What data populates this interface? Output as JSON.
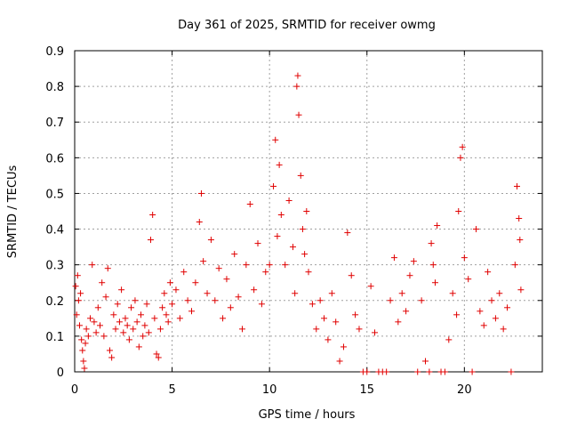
{
  "chart_data": {
    "type": "scatter",
    "title": "Day 361 of 2025, SRMTID for receiver owmg",
    "xlabel": "GPS time / hours",
    "ylabel": "SRMTID / TECUs",
    "xlim": [
      0,
      24
    ],
    "ylim": [
      0,
      0.9
    ],
    "xticks": [
      0,
      5,
      10,
      15,
      20
    ],
    "yticks": [
      0,
      0.1,
      0.2,
      0.3,
      0.4,
      0.5,
      0.6,
      0.7,
      0.8,
      0.9
    ],
    "grid": true,
    "marker": "plus",
    "color": "#e00000",
    "series": [
      {
        "name": "owmg",
        "points": [
          [
            0.05,
            0.24
          ],
          [
            0.1,
            0.16
          ],
          [
            0.15,
            0.27
          ],
          [
            0.2,
            0.2
          ],
          [
            0.25,
            0.13
          ],
          [
            0.3,
            0.22
          ],
          [
            0.35,
            0.09
          ],
          [
            0.4,
            0.06
          ],
          [
            0.45,
            0.03
          ],
          [
            0.5,
            0.01
          ],
          [
            0.55,
            0.08
          ],
          [
            0.6,
            0.12
          ],
          [
            0.7,
            0.1
          ],
          [
            0.8,
            0.15
          ],
          [
            0.9,
            0.3
          ],
          [
            1.0,
            0.14
          ],
          [
            1.1,
            0.11
          ],
          [
            1.2,
            0.18
          ],
          [
            1.3,
            0.13
          ],
          [
            1.4,
            0.25
          ],
          [
            1.5,
            0.1
          ],
          [
            1.6,
            0.21
          ],
          [
            1.7,
            0.29
          ],
          [
            1.8,
            0.06
          ],
          [
            1.9,
            0.04
          ],
          [
            2.0,
            0.16
          ],
          [
            2.1,
            0.12
          ],
          [
            2.2,
            0.19
          ],
          [
            2.3,
            0.14
          ],
          [
            2.4,
            0.23
          ],
          [
            2.5,
            0.11
          ],
          [
            2.6,
            0.15
          ],
          [
            2.7,
            0.13
          ],
          [
            2.8,
            0.09
          ],
          [
            2.9,
            0.18
          ],
          [
            3.0,
            0.12
          ],
          [
            3.1,
            0.2
          ],
          [
            3.2,
            0.14
          ],
          [
            3.3,
            0.07
          ],
          [
            3.4,
            0.16
          ],
          [
            3.5,
            0.1
          ],
          [
            3.6,
            0.13
          ],
          [
            3.7,
            0.19
          ],
          [
            3.8,
            0.11
          ],
          [
            3.9,
            0.37
          ],
          [
            4.0,
            0.44
          ],
          [
            4.1,
            0.15
          ],
          [
            4.2,
            0.05
          ],
          [
            4.3,
            0.04
          ],
          [
            4.4,
            0.12
          ],
          [
            4.5,
            0.18
          ],
          [
            4.6,
            0.22
          ],
          [
            4.7,
            0.16
          ],
          [
            4.8,
            0.14
          ],
          [
            4.9,
            0.25
          ],
          [
            5.0,
            0.19
          ],
          [
            5.2,
            0.23
          ],
          [
            5.4,
            0.15
          ],
          [
            5.6,
            0.28
          ],
          [
            5.8,
            0.2
          ],
          [
            6.0,
            0.17
          ],
          [
            6.2,
            0.25
          ],
          [
            6.4,
            0.42
          ],
          [
            6.5,
            0.5
          ],
          [
            6.6,
            0.31
          ],
          [
            6.8,
            0.22
          ],
          [
            7.0,
            0.37
          ],
          [
            7.2,
            0.2
          ],
          [
            7.4,
            0.29
          ],
          [
            7.6,
            0.15
          ],
          [
            7.8,
            0.26
          ],
          [
            8.0,
            0.18
          ],
          [
            8.2,
            0.33
          ],
          [
            8.4,
            0.21
          ],
          [
            8.6,
            0.12
          ],
          [
            8.8,
            0.3
          ],
          [
            9.0,
            0.47
          ],
          [
            9.2,
            0.23
          ],
          [
            9.4,
            0.36
          ],
          [
            9.6,
            0.19
          ],
          [
            9.8,
            0.28
          ],
          [
            10.0,
            0.3
          ],
          [
            10.2,
            0.52
          ],
          [
            10.3,
            0.65
          ],
          [
            10.4,
            0.38
          ],
          [
            10.5,
            0.58
          ],
          [
            10.6,
            0.44
          ],
          [
            10.8,
            0.3
          ],
          [
            11.0,
            0.48
          ],
          [
            11.2,
            0.35
          ],
          [
            11.3,
            0.22
          ],
          [
            11.4,
            0.8
          ],
          [
            11.45,
            0.83
          ],
          [
            11.5,
            0.72
          ],
          [
            11.6,
            0.55
          ],
          [
            11.7,
            0.4
          ],
          [
            11.8,
            0.33
          ],
          [
            11.9,
            0.45
          ],
          [
            12.0,
            0.28
          ],
          [
            12.2,
            0.19
          ],
          [
            12.4,
            0.12
          ],
          [
            12.6,
            0.2
          ],
          [
            12.8,
            0.15
          ],
          [
            13.0,
            0.09
          ],
          [
            13.2,
            0.22
          ],
          [
            13.4,
            0.14
          ],
          [
            13.6,
            0.03
          ],
          [
            13.8,
            0.07
          ],
          [
            14.0,
            0.39
          ],
          [
            14.2,
            0.27
          ],
          [
            14.4,
            0.16
          ],
          [
            14.6,
            0.12
          ],
          [
            14.8,
            0.0
          ],
          [
            15.0,
            0.0
          ],
          [
            15.2,
            0.24
          ],
          [
            15.4,
            0.11
          ],
          [
            15.6,
            0.0
          ],
          [
            15.8,
            0.0
          ],
          [
            16.0,
            0.0
          ],
          [
            16.2,
            0.2
          ],
          [
            16.4,
            0.32
          ],
          [
            16.6,
            0.14
          ],
          [
            16.8,
            0.22
          ],
          [
            17.0,
            0.17
          ],
          [
            17.2,
            0.27
          ],
          [
            17.4,
            0.31
          ],
          [
            17.6,
            0.0
          ],
          [
            17.8,
            0.2
          ],
          [
            18.0,
            0.03
          ],
          [
            18.2,
            0.0
          ],
          [
            18.3,
            0.36
          ],
          [
            18.4,
            0.3
          ],
          [
            18.5,
            0.25
          ],
          [
            18.6,
            0.41
          ],
          [
            18.8,
            0.0
          ],
          [
            19.0,
            0.0
          ],
          [
            19.2,
            0.09
          ],
          [
            19.4,
            0.22
          ],
          [
            19.6,
            0.16
          ],
          [
            19.7,
            0.45
          ],
          [
            19.8,
            0.6
          ],
          [
            19.9,
            0.63
          ],
          [
            20.0,
            0.32
          ],
          [
            20.2,
            0.26
          ],
          [
            20.4,
            0.0
          ],
          [
            20.6,
            0.4
          ],
          [
            20.8,
            0.17
          ],
          [
            21.0,
            0.13
          ],
          [
            21.2,
            0.28
          ],
          [
            21.4,
            0.2
          ],
          [
            21.6,
            0.15
          ],
          [
            21.8,
            0.22
          ],
          [
            22.0,
            0.12
          ],
          [
            22.2,
            0.18
          ],
          [
            22.4,
            0.0
          ],
          [
            22.6,
            0.3
          ],
          [
            22.7,
            0.52
          ],
          [
            22.8,
            0.43
          ],
          [
            22.85,
            0.37
          ],
          [
            22.9,
            0.23
          ]
        ]
      }
    ]
  }
}
